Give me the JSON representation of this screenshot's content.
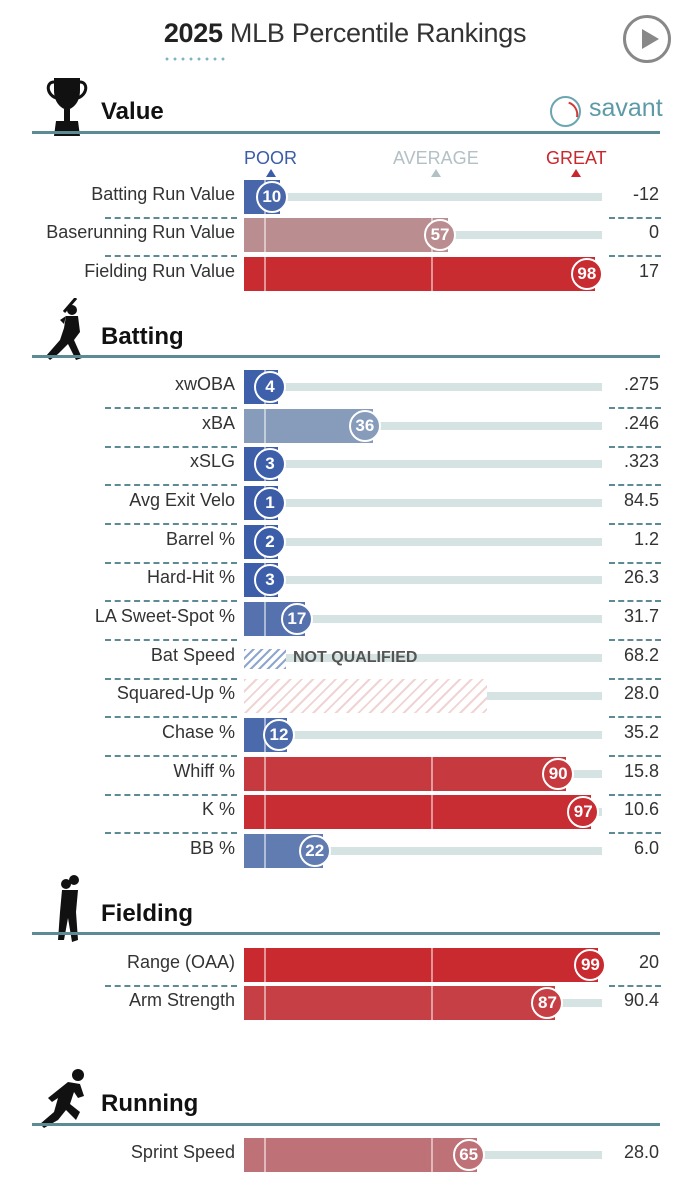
{
  "header": {
    "title_year": "2025",
    "title_rest": "MLB Percentile Rankings",
    "play_icon": "play-icon"
  },
  "brand": {
    "name": "savant",
    "icon": "baseball-icon",
    "color": "#5c9aa8"
  },
  "scale_labels": {
    "poor": "POOR",
    "average": "AVERAGE",
    "great": "GREAT"
  },
  "colors": {
    "poor": "#3b5ca8",
    "average": "#b3c1c5",
    "great": "#c8282d",
    "line": "#5c8b95"
  },
  "chart_data": {
    "type": "bar",
    "title": "2025 MLB Percentile Rankings",
    "xlim": [
      0,
      100
    ],
    "sections": [
      {
        "name": "Value",
        "icon": "trophy-icon",
        "rows": [
          {
            "label": "Batting Run Value",
            "percentile": 10,
            "value": "-12"
          },
          {
            "label": "Baserunning Run Value",
            "percentile": 57,
            "value": "0"
          },
          {
            "label": "Fielding Run Value",
            "percentile": 98,
            "value": "17"
          }
        ]
      },
      {
        "name": "Batting",
        "icon": "batter-icon",
        "rows": [
          {
            "label": "xwOBA",
            "percentile": 4,
            "value": ".275"
          },
          {
            "label": "xBA",
            "percentile": 36,
            "value": ".246"
          },
          {
            "label": "xSLG",
            "percentile": 3,
            "value": ".323"
          },
          {
            "label": "Avg Exit Velo",
            "percentile": 1,
            "value": "84.5"
          },
          {
            "label": "Barrel %",
            "percentile": 2,
            "value": "1.2"
          },
          {
            "label": "Hard-Hit %",
            "percentile": 3,
            "value": "26.3"
          },
          {
            "label": "LA Sweet-Spot %",
            "percentile": 17,
            "value": "31.7"
          },
          {
            "label": "Bat Speed",
            "percentile": null,
            "status": "NOT QUALIFIED",
            "value": "68.2"
          },
          {
            "label": "Squared-Up %",
            "percentile": null,
            "hatched_to": 68,
            "value": "28.0"
          },
          {
            "label": "Chase %",
            "percentile": 12,
            "value": "35.2"
          },
          {
            "label": "Whiff %",
            "percentile": 90,
            "value": "15.8"
          },
          {
            "label": "K %",
            "percentile": 97,
            "value": "10.6"
          },
          {
            "label": "BB %",
            "percentile": 22,
            "value": "6.0"
          }
        ]
      },
      {
        "name": "Fielding",
        "icon": "fielder-icon",
        "rows": [
          {
            "label": "Range (OAA)",
            "percentile": 99,
            "value": "20"
          },
          {
            "label": "Arm Strength",
            "percentile": 87,
            "value": "90.4"
          }
        ]
      },
      {
        "name": "Running",
        "icon": "runner-icon",
        "rows": [
          {
            "label": "Sprint Speed",
            "percentile": 65,
            "value": "28.0"
          }
        ]
      }
    ]
  }
}
